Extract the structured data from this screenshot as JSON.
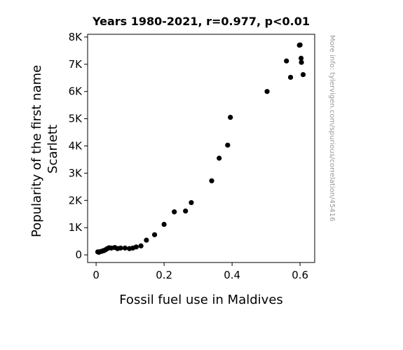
{
  "chart_data": {
    "type": "scatter",
    "title": "Years 1980-2021, r=0.977, p<0.01",
    "xlabel": "Fossil fuel use in Maldives",
    "ylabel_lines": [
      "Popularity of the first name",
      "Scarlett"
    ],
    "xlim": [
      -0.025,
      0.643
    ],
    "ylim": [
      -280,
      8100
    ],
    "x_ticks": [
      {
        "v": 0,
        "label": "0"
      },
      {
        "v": 0.2,
        "label": "0.2"
      },
      {
        "v": 0.4,
        "label": "0.4"
      },
      {
        "v": 0.6,
        "label": "0.6"
      }
    ],
    "y_ticks": [
      {
        "v": 0,
        "label": "0"
      },
      {
        "v": 1000,
        "label": "1K"
      },
      {
        "v": 2000,
        "label": "2K"
      },
      {
        "v": 3000,
        "label": "3K"
      },
      {
        "v": 4000,
        "label": "4K"
      },
      {
        "v": 5000,
        "label": "5K"
      },
      {
        "v": 6000,
        "label": "6K"
      },
      {
        "v": 7000,
        "label": "7K"
      },
      {
        "v": 8000,
        "label": "8K"
      }
    ],
    "grid": false,
    "marker_color": "#000000",
    "points": [
      {
        "x": 0.005,
        "y": 110
      },
      {
        "x": 0.008,
        "y": 95
      },
      {
        "x": 0.012,
        "y": 120
      },
      {
        "x": 0.016,
        "y": 130
      },
      {
        "x": 0.02,
        "y": 150
      },
      {
        "x": 0.024,
        "y": 160
      },
      {
        "x": 0.028,
        "y": 190
      },
      {
        "x": 0.033,
        "y": 230
      },
      {
        "x": 0.038,
        "y": 260
      },
      {
        "x": 0.045,
        "y": 250
      },
      {
        "x": 0.055,
        "y": 270
      },
      {
        "x": 0.063,
        "y": 230
      },
      {
        "x": 0.072,
        "y": 250
      },
      {
        "x": 0.085,
        "y": 250
      },
      {
        "x": 0.098,
        "y": 230
      },
      {
        "x": 0.108,
        "y": 250
      },
      {
        "x": 0.118,
        "y": 290
      },
      {
        "x": 0.132,
        "y": 330
      },
      {
        "x": 0.148,
        "y": 540
      },
      {
        "x": 0.172,
        "y": 740
      },
      {
        "x": 0.2,
        "y": 1120
      },
      {
        "x": 0.23,
        "y": 1580
      },
      {
        "x": 0.263,
        "y": 1610
      },
      {
        "x": 0.28,
        "y": 1920
      },
      {
        "x": 0.34,
        "y": 2720
      },
      {
        "x": 0.362,
        "y": 3550
      },
      {
        "x": 0.387,
        "y": 4030
      },
      {
        "x": 0.395,
        "y": 5050
      },
      {
        "x": 0.503,
        "y": 6000
      },
      {
        "x": 0.56,
        "y": 7120
      },
      {
        "x": 0.572,
        "y": 6520
      },
      {
        "x": 0.598,
        "y": 7700
      },
      {
        "x": 0.6,
        "y": 7710
      },
      {
        "x": 0.603,
        "y": 7220
      },
      {
        "x": 0.604,
        "y": 7070
      },
      {
        "x": 0.609,
        "y": 6620
      }
    ]
  },
  "watermark": "More info: tylervigen.com/spurious/correlation/45416"
}
